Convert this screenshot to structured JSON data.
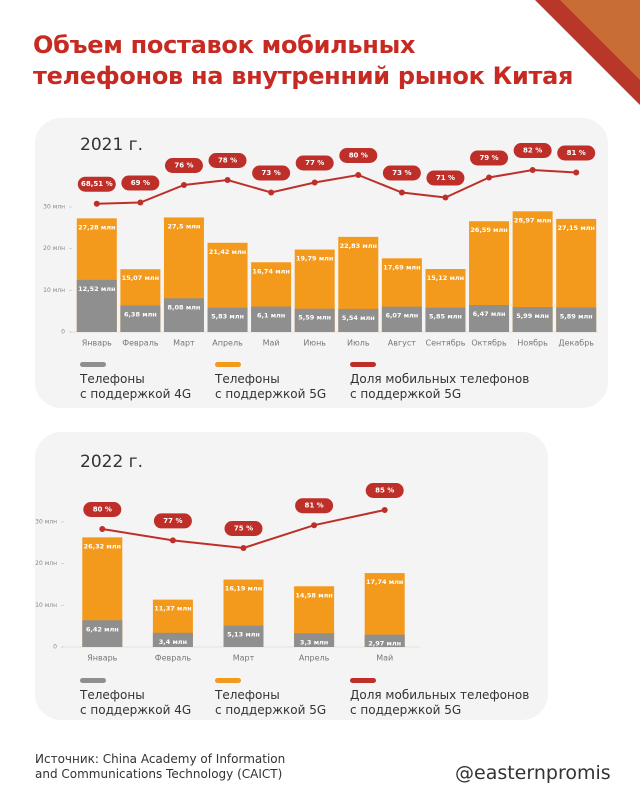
{
  "header": {
    "title": "Объем поставок мобильных\nтелефонов на внутренний рынок Китая"
  },
  "footer": {
    "source": "Источник: China Academy of Information\nand Communications Technology (CAICT)",
    "handle": "@easternpromis"
  },
  "chart_data": [
    {
      "type": "bar_line",
      "title": "2021 г.",
      "categories": [
        "Январь",
        "Февраль",
        "Март",
        "Апрель",
        "Май",
        "Июнь",
        "Июль",
        "Август",
        "Сентябрь",
        "Октябрь",
        "Ноябрь",
        "Декабрь"
      ],
      "ylim": [
        0,
        30
      ],
      "yticks": [
        0,
        {
          "value": 10,
          "label": "10 млн"
        },
        {
          "value": 20,
          "label": "20 млн"
        },
        {
          "value": 30,
          "label": "30 млн"
        }
      ],
      "y2lim": [
        50,
        90
      ],
      "series": [
        {
          "name": "Телефоны\nс поддержкой 4G",
          "type": "bar",
          "color": "#8f8f8f",
          "values": [
            12.52,
            6.38,
            8.08,
            5.83,
            6.1,
            5.59,
            5.54,
            6.07,
            5.85,
            6.47,
            5.99,
            5.89
          ],
          "value_labels": [
            "12,52 млн",
            "6,38 млн",
            "8,08 млн",
            "5,83 млн",
            "6,1 млн",
            "5,59 млн",
            "5,54 млн",
            "6,07 млн",
            "5,85 млн",
            "6,47 млн",
            "5,99 млн",
            "5,89 млн"
          ]
        },
        {
          "name": "Телефоны\nс поддержкой 5G",
          "type": "bar",
          "color": "#f39a1d",
          "values": [
            27.28,
            15.07,
            27.5,
            21.42,
            16.74,
            19.79,
            22.83,
            17.69,
            15.12,
            26.59,
            28.97,
            27.15
          ],
          "value_labels": [
            "27,28 млн",
            "15,07 млн",
            "27,5 млн",
            "21,42 млн",
            "16,74 млн",
            "19,79 млн",
            "22,83 млн",
            "17,69 млн",
            "15,12 млн",
            "26,59 млн",
            "28,97 млн",
            "27,15 млн"
          ]
        },
        {
          "name": "Доля мобильных телефонов\nс поддержкой 5G",
          "type": "line",
          "axis": "y2",
          "color": "#bf2f2a",
          "values": [
            68.51,
            69,
            76,
            78,
            73,
            77,
            80,
            73,
            71,
            79,
            82,
            81
          ],
          "value_labels": [
            "68,51 %",
            "69 %",
            "76 %",
            "78 %",
            "73 %",
            "77 %",
            "80 %",
            "73 %",
            "71 %",
            "79 %",
            "82 %",
            "81 %"
          ]
        }
      ]
    },
    {
      "type": "bar_line",
      "title": "2022 г.",
      "categories": [
        "Январь",
        "Февраль",
        "Март",
        "Апрель",
        "Май"
      ],
      "ylim": [
        0,
        30
      ],
      "yticks": [
        0,
        {
          "value": 10,
          "label": "10 млн"
        },
        {
          "value": 20,
          "label": "20 млн"
        },
        {
          "value": 30,
          "label": "30 млн"
        }
      ],
      "y2lim": [
        50,
        100
      ],
      "series": [
        {
          "name": "Телефоны\nс поддержкой 4G",
          "type": "bar",
          "color": "#8f8f8f",
          "values": [
            6.42,
            3.4,
            5.13,
            3.3,
            2.97
          ],
          "value_labels": [
            "6,42 млн",
            "3,4 млн",
            "5,13 млн",
            "3,3 млн",
            "2,97 млн"
          ]
        },
        {
          "name": "Телефоны\nс поддержкой 5G",
          "type": "bar",
          "color": "#f39a1d",
          "values": [
            26.32,
            11.37,
            16.19,
            14.58,
            17.74
          ],
          "value_labels": [
            "26,32 млн",
            "11,37 млн",
            "16,19 млн",
            "14,58 млн",
            "17,74 млн"
          ]
        },
        {
          "name": "Доля мобильных телефонов\nс поддержкой 5G",
          "type": "line",
          "axis": "y2",
          "color": "#bf2f2a",
          "values": [
            80,
            77,
            75,
            81,
            85
          ],
          "value_labels": [
            "80 %",
            "77 %",
            "75 %",
            "81 %",
            "85 %"
          ]
        }
      ]
    }
  ]
}
